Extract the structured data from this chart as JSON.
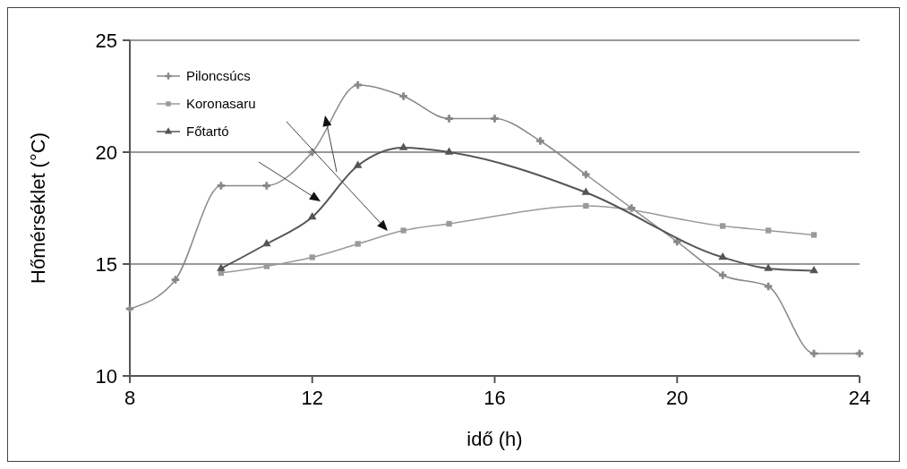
{
  "chart_data": {
    "type": "line",
    "xlabel": "idő (h)",
    "ylabel": "Hőmérséklet (°C)",
    "xlim": [
      8,
      24
    ],
    "xticks": [
      8,
      12,
      16,
      20,
      24
    ],
    "ylim": [
      10,
      25
    ],
    "yticks": [
      10,
      15,
      20,
      25
    ],
    "grid": "y",
    "legend": "top left",
    "line_style": "solid",
    "series": [
      {
        "name": "Piloncsúcs",
        "color": "#888888",
        "marker": "cross",
        "x": [
          8,
          9,
          10,
          11,
          12,
          13,
          14,
          15,
          16,
          17,
          18,
          19,
          20,
          21,
          22,
          23,
          24
        ],
        "values": [
          13,
          14.3,
          18.5,
          18.5,
          20,
          23,
          22.5,
          21.5,
          21.5,
          20.5,
          19,
          17.5,
          16,
          14.5,
          14,
          11,
          11
        ]
      },
      {
        "name": "Koronasaru",
        "color": "#9a9a9a",
        "marker": "square",
        "x": [
          10,
          11,
          12,
          13,
          14,
          15,
          18,
          21,
          22,
          23
        ],
        "values": [
          14.6,
          14.9,
          15.3,
          15.9,
          16.5,
          16.8,
          17.6,
          16.7,
          16.5,
          16.3
        ]
      },
      {
        "name": "Főtartó",
        "color": "#555555",
        "marker": "triangle",
        "x": [
          10,
          11,
          12,
          13,
          14,
          15,
          18,
          21,
          22,
          23
        ],
        "values": [
          14.8,
          15.9,
          17.1,
          19.4,
          20.2,
          20,
          18.2,
          15.3,
          14.8,
          14.7
        ]
      }
    ]
  }
}
